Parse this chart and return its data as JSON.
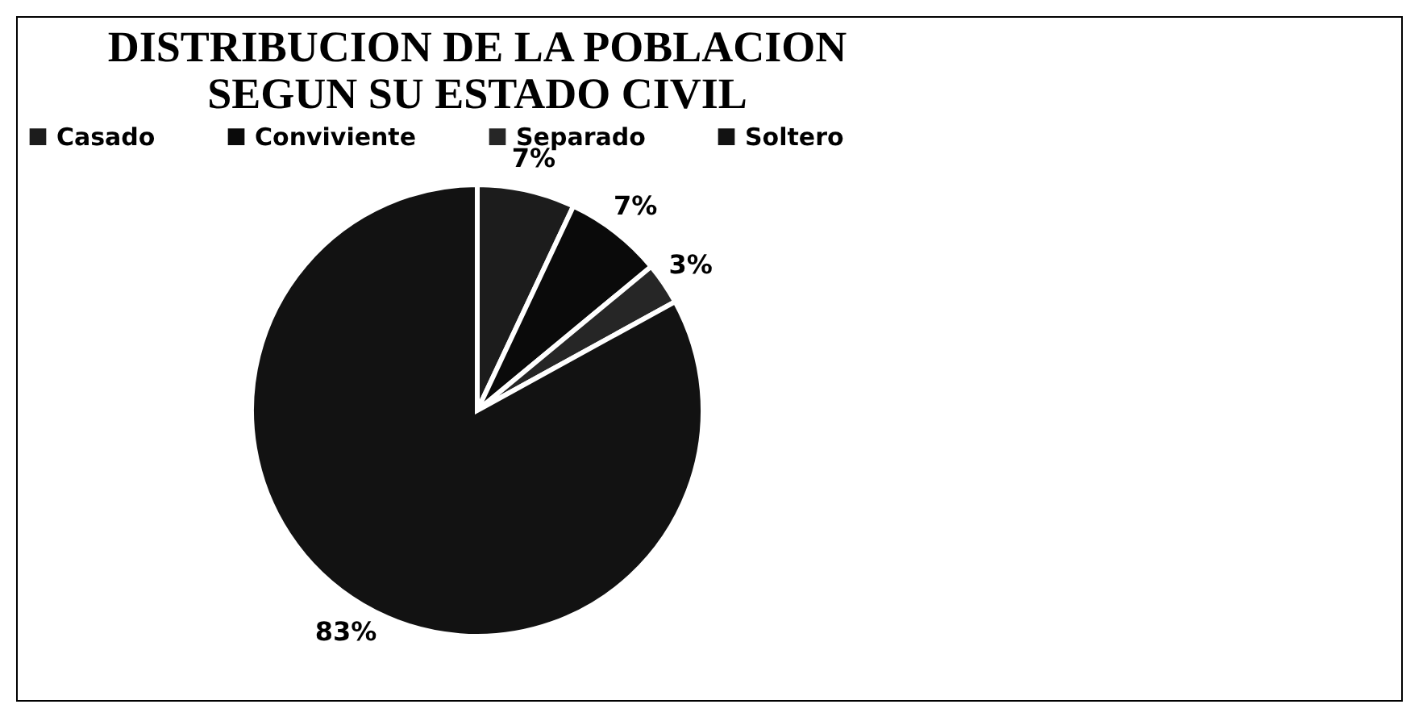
{
  "chart_data": {
    "type": "pie",
    "title": "DISTRIBUCION DE LA POBLACION\nSEGUN SU ESTADO CIVIL",
    "categories": [
      "Casado",
      "Conviviente",
      "Separado",
      "Soltero"
    ],
    "values": [
      7,
      7,
      3,
      83
    ],
    "value_labels": [
      "7%",
      "7%",
      "3%",
      "83%"
    ],
    "colors": [
      "#1c1c1c",
      "#0a0a0a",
      "#262626",
      "#121212"
    ],
    "legend": "top"
  }
}
